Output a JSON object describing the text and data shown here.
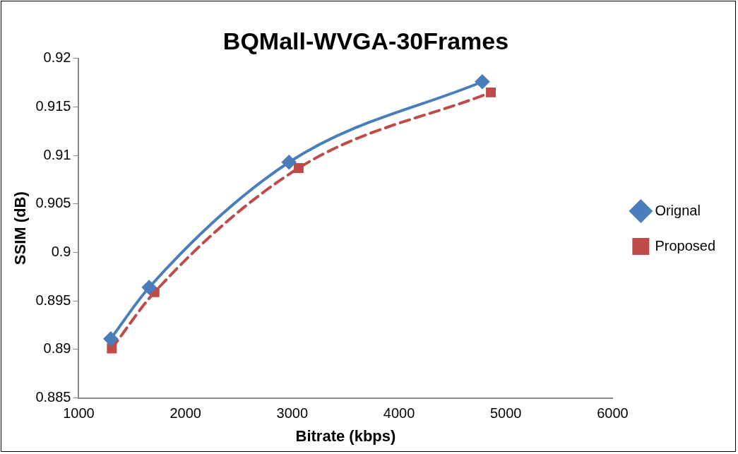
{
  "chart_data": {
    "type": "line",
    "title": "BQMall-WVGA-30Frames",
    "xlabel": "Bitrate (kbps)",
    "ylabel": "SSIM (dB)",
    "xlim": [
      1000,
      6000
    ],
    "xticks": [
      1000,
      2000,
      3000,
      4000,
      5000,
      6000
    ],
    "ylim": [
      0.885,
      0.92
    ],
    "yticks": [
      0.885,
      0.89,
      0.895,
      0.9,
      0.905,
      0.91,
      0.915,
      0.92
    ],
    "grid": false,
    "legend": "right",
    "series": [
      {
        "name": "Orignal",
        "color": "#4a7ebb",
        "marker": "diamond",
        "line_style": "solid",
        "x": [
          1300,
          1660,
          2970,
          4780
        ],
        "values": [
          0.8911,
          0.8964,
          0.9093,
          0.9176
        ]
      },
      {
        "name": "Proposed",
        "color": "#be4b48",
        "marker": "square",
        "line_style": "dashed",
        "x": [
          1310,
          1710,
          3060,
          4860
        ],
        "values": [
          0.8901,
          0.8959,
          0.9087,
          0.9165
        ]
      }
    ]
  }
}
